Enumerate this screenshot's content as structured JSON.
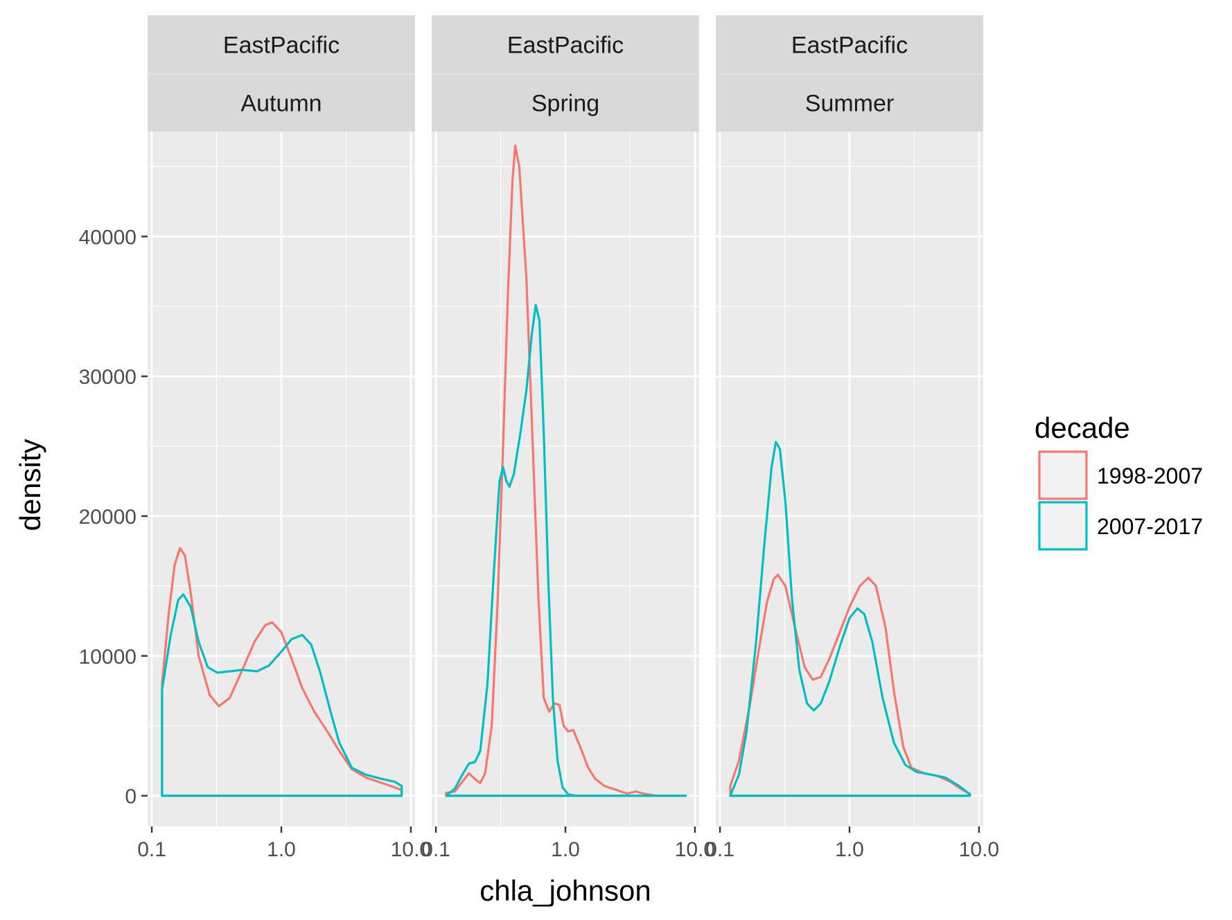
{
  "chart_data": {
    "type": "line",
    "subtype": "density",
    "xlabel": "chla_johnson",
    "ylabel": "density",
    "x_scale": "log10",
    "xlim": [
      0.1,
      10.0
    ],
    "x_ticks": [
      0.1,
      1.0,
      10.0
    ],
    "x_tick_labels": [
      "0.1",
      "1.0",
      "10.0"
    ],
    "ylim": [
      -2200,
      47500
    ],
    "y_ticks": [
      0,
      10000,
      20000,
      30000,
      40000
    ],
    "y_tick_labels": [
      "0",
      "10000",
      "20000",
      "30000",
      "40000"
    ],
    "grid": true,
    "legend_position": "right",
    "legend": {
      "title": "decade",
      "entries": [
        {
          "label": "1998-2007",
          "color": "#F8766D"
        },
        {
          "label": "2007-2017",
          "color": "#00BFC4"
        }
      ]
    },
    "colors": {
      "panel_background": "#EBEBEB",
      "strip_background": "#D9D9D9",
      "grid": "#FFFFFF",
      "tick_mark": "#333333"
    },
    "facets": [
      {
        "strip_labels": [
          "EastPacific",
          "Autumn"
        ],
        "x_domain": [
          0.12,
          8.5
        ],
        "series": [
          {
            "name": "1998-2007",
            "points": [
              [
                0.12,
                8000
              ],
              [
                0.135,
                13000
              ],
              [
                0.15,
                16500
              ],
              [
                0.165,
                17700
              ],
              [
                0.18,
                17200
              ],
              [
                0.2,
                14500
              ],
              [
                0.23,
                10000
              ],
              [
                0.28,
                7200
              ],
              [
                0.33,
                6400
              ],
              [
                0.4,
                7000
              ],
              [
                0.5,
                9000
              ],
              [
                0.62,
                11000
              ],
              [
                0.75,
                12200
              ],
              [
                0.85,
                12400
              ],
              [
                1.0,
                11700
              ],
              [
                1.2,
                9800
              ],
              [
                1.45,
                7700
              ],
              [
                1.8,
                6000
              ],
              [
                2.3,
                4500
              ],
              [
                2.8,
                3200
              ],
              [
                3.5,
                1900
              ],
              [
                4.5,
                1300
              ],
              [
                6.0,
                900
              ],
              [
                7.5,
                600
              ],
              [
                8.5,
                400
              ]
            ]
          },
          {
            "name": "2007-2017",
            "points": [
              [
                0.12,
                7600
              ],
              [
                0.14,
                11500
              ],
              [
                0.16,
                14000
              ],
              [
                0.175,
                14400
              ],
              [
                0.2,
                13500
              ],
              [
                0.23,
                11000
              ],
              [
                0.27,
                9200
              ],
              [
                0.32,
                8800
              ],
              [
                0.4,
                8900
              ],
              [
                0.5,
                9000
              ],
              [
                0.65,
                8900
              ],
              [
                0.8,
                9300
              ],
              [
                1.0,
                10300
              ],
              [
                1.2,
                11200
              ],
              [
                1.45,
                11500
              ],
              [
                1.7,
                10800
              ],
              [
                2.0,
                8800
              ],
              [
                2.4,
                6000
              ],
              [
                2.8,
                3800
              ],
              [
                3.5,
                2000
              ],
              [
                4.5,
                1500
              ],
              [
                6.0,
                1200
              ],
              [
                7.5,
                1000
              ],
              [
                8.5,
                700
              ]
            ]
          }
        ]
      },
      {
        "strip_labels": [
          "EastPacific",
          "Spring"
        ],
        "x_domain": [
          0.12,
          8.5
        ],
        "series": [
          {
            "name": "1998-2007",
            "points": [
              [
                0.12,
                200
              ],
              [
                0.14,
                300
              ],
              [
                0.16,
                1000
              ],
              [
                0.18,
                1600
              ],
              [
                0.2,
                1200
              ],
              [
                0.22,
                900
              ],
              [
                0.24,
                1600
              ],
              [
                0.27,
                5000
              ],
              [
                0.3,
                14000
              ],
              [
                0.33,
                25000
              ],
              [
                0.36,
                36000
              ],
              [
                0.39,
                44000
              ],
              [
                0.41,
                46500
              ],
              [
                0.44,
                45000
              ],
              [
                0.5,
                37000
              ],
              [
                0.56,
                25000
              ],
              [
                0.62,
                14000
              ],
              [
                0.68,
                7000
              ],
              [
                0.75,
                6000
              ],
              [
                0.82,
                6600
              ],
              [
                0.9,
                6500
              ],
              [
                0.97,
                5000
              ],
              [
                1.05,
                4600
              ],
              [
                1.15,
                4700
              ],
              [
                1.3,
                3500
              ],
              [
                1.5,
                2000
              ],
              [
                1.7,
                1200
              ],
              [
                2.0,
                700
              ],
              [
                2.5,
                400
              ],
              [
                3.0,
                150
              ],
              [
                3.5,
                300
              ],
              [
                4.0,
                150
              ],
              [
                5.0,
                0
              ],
              [
                8.5,
                0
              ]
            ]
          },
          {
            "name": "2007-2017",
            "points": [
              [
                0.12,
                0
              ],
              [
                0.14,
                500
              ],
              [
                0.16,
                1500
              ],
              [
                0.18,
                2300
              ],
              [
                0.2,
                2400
              ],
              [
                0.22,
                3200
              ],
              [
                0.25,
                8000
              ],
              [
                0.28,
                16000
              ],
              [
                0.31,
                22500
              ],
              [
                0.33,
                23500
              ],
              [
                0.35,
                22500
              ],
              [
                0.37,
                22100
              ],
              [
                0.4,
                23000
              ],
              [
                0.45,
                26000
              ],
              [
                0.5,
                29000
              ],
              [
                0.55,
                33000
              ],
              [
                0.59,
                35100
              ],
              [
                0.63,
                34000
              ],
              [
                0.68,
                26000
              ],
              [
                0.74,
                15000
              ],
              [
                0.8,
                7000
              ],
              [
                0.87,
                2500
              ],
              [
                0.95,
                600
              ],
              [
                1.05,
                100
              ],
              [
                1.2,
                0
              ],
              [
                8.5,
                0
              ]
            ]
          }
        ]
      },
      {
        "strip_labels": [
          "EastPacific",
          "Summer"
        ],
        "x_domain": [
          0.12,
          8.5
        ],
        "series": [
          {
            "name": "1998-2007",
            "points": [
              [
                0.12,
                700
              ],
              [
                0.14,
                2500
              ],
              [
                0.17,
                6500
              ],
              [
                0.2,
                10500
              ],
              [
                0.23,
                13800
              ],
              [
                0.26,
                15500
              ],
              [
                0.28,
                15800
              ],
              [
                0.32,
                15000
              ],
              [
                0.38,
                12000
              ],
              [
                0.45,
                9200
              ],
              [
                0.52,
                8300
              ],
              [
                0.6,
                8500
              ],
              [
                0.7,
                9800
              ],
              [
                0.85,
                11800
              ],
              [
                1.0,
                13500
              ],
              [
                1.2,
                15000
              ],
              [
                1.4,
                15600
              ],
              [
                1.6,
                15000
              ],
              [
                1.9,
                12000
              ],
              [
                2.2,
                7500
              ],
              [
                2.6,
                3500
              ],
              [
                3.0,
                2000
              ],
              [
                3.8,
                1600
              ],
              [
                4.8,
                1400
              ],
              [
                6.0,
                1000
              ],
              [
                7.5,
                400
              ],
              [
                8.5,
                150
              ]
            ]
          },
          {
            "name": "2007-2017",
            "points": [
              [
                0.12,
                0
              ],
              [
                0.14,
                1500
              ],
              [
                0.16,
                4500
              ],
              [
                0.19,
                11000
              ],
              [
                0.22,
                18000
              ],
              [
                0.25,
                23500
              ],
              [
                0.27,
                25300
              ],
              [
                0.29,
                24800
              ],
              [
                0.32,
                21000
              ],
              [
                0.36,
                14000
              ],
              [
                0.41,
                9000
              ],
              [
                0.47,
                6600
              ],
              [
                0.53,
                6100
              ],
              [
                0.6,
                6600
              ],
              [
                0.7,
                8200
              ],
              [
                0.85,
                10800
              ],
              [
                1.0,
                12700
              ],
              [
                1.15,
                13400
              ],
              [
                1.3,
                13000
              ],
              [
                1.5,
                11000
              ],
              [
                1.8,
                7000
              ],
              [
                2.2,
                3800
              ],
              [
                2.7,
                2200
              ],
              [
                3.3,
                1700
              ],
              [
                4.3,
                1500
              ],
              [
                5.5,
                1300
              ],
              [
                7.0,
                700
              ],
              [
                8.5,
                100
              ]
            ]
          }
        ]
      }
    ]
  }
}
